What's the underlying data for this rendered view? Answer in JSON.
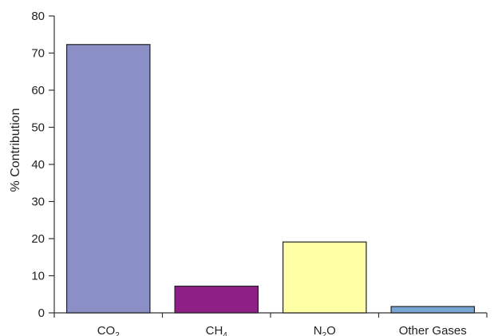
{
  "chart_data": {
    "type": "bar",
    "title": "",
    "xlabel": "",
    "ylabel": "% Contribution",
    "ylim": [
      0,
      80
    ],
    "yticks": [
      0,
      10,
      20,
      30,
      40,
      50,
      60,
      70,
      80
    ],
    "grid": false,
    "categories": [
      {
        "base": "CO",
        "sub": "2",
        "text": "CO₂"
      },
      {
        "base": "CH",
        "sub": "4",
        "text": "CH₄"
      },
      {
        "base": "N",
        "sub": "2",
        "after": "O",
        "text": "N₂O"
      },
      {
        "base": "Other Gases",
        "sub": "",
        "text": "Other Gases"
      }
    ],
    "values": [
      72.3,
      7.2,
      19.1,
      1.7
    ],
    "colors": [
      "#8a8fc6",
      "#8e1f86",
      "#ffffa6",
      "#7aa6d6"
    ]
  }
}
